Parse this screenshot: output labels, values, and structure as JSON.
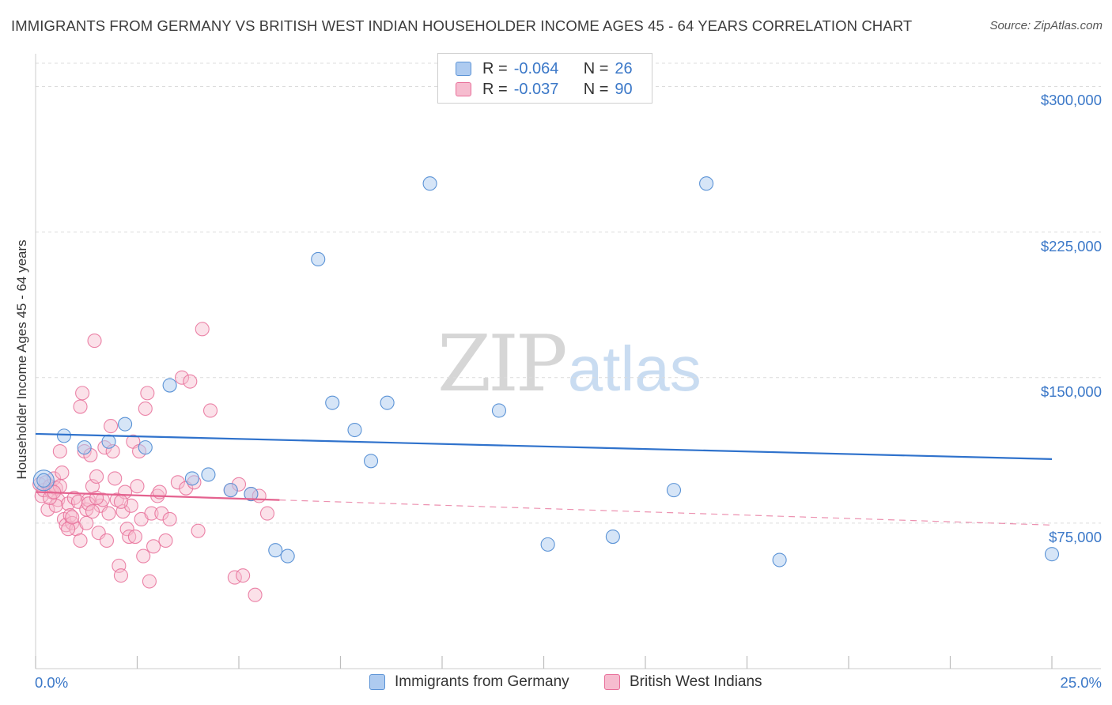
{
  "title": "IMMIGRANTS FROM GERMANY VS BRITISH WEST INDIAN HOUSEHOLDER INCOME AGES 45 - 64 YEARS CORRELATION CHART",
  "source": "Source: ZipAtlas.com",
  "watermark": {
    "zip": "ZIP",
    "atlas": "atlas"
  },
  "legend": {
    "r_label": "R =",
    "n_label": "N =",
    "germany": {
      "r": "-0.064",
      "n": "26"
    },
    "bwi": {
      "r": "-0.037",
      "n": "90"
    }
  },
  "colors": {
    "germany_fill": "#aecbf0",
    "germany_stroke": "#5b93d6",
    "germany_line": "#2f72cc",
    "bwi_fill": "#f6bccf",
    "bwi_stroke": "#e86e99",
    "bwi_line": "#e4628f",
    "tick_text": "#3b78c8",
    "grid": "#dcdcdc"
  },
  "chart_data": {
    "type": "scatter",
    "title": "IMMIGRANTS FROM GERMANY VS BRITISH WEST INDIAN HOUSEHOLDER INCOME AGES 45 - 64 YEARS CORRELATION CHART",
    "xlabel": "",
    "ylabel": "Householder Income Ages 45 - 64 years",
    "xlim": [
      0,
      25
    ],
    "ylim": [
      0,
      312000
    ],
    "x_tick_labels": [
      "0.0%",
      "25.0%"
    ],
    "y_ticks": [
      75000,
      150000,
      225000,
      300000
    ],
    "y_tick_labels": [
      "$75,000",
      "$150,000",
      "$225,000",
      "$300,000"
    ],
    "legend_position": "top-center",
    "series": [
      {
        "name": "Immigrants from Germany",
        "r": -0.064,
        "n": 26,
        "trend": {
          "x": [
            0,
            25
          ],
          "y": [
            121000,
            108000
          ],
          "solid_until": 25
        },
        "points": [
          {
            "x": 0.2,
            "y": 97000
          },
          {
            "x": 0.7,
            "y": 120000
          },
          {
            "x": 1.2,
            "y": 114000
          },
          {
            "x": 1.8,
            "y": 117000
          },
          {
            "x": 2.2,
            "y": 126000
          },
          {
            "x": 2.7,
            "y": 114000
          },
          {
            "x": 3.3,
            "y": 146000
          },
          {
            "x": 3.85,
            "y": 98000
          },
          {
            "x": 4.25,
            "y": 100000
          },
          {
            "x": 4.8,
            "y": 92000
          },
          {
            "x": 5.3,
            "y": 90000
          },
          {
            "x": 5.9,
            "y": 61000
          },
          {
            "x": 6.2,
            "y": 58000
          },
          {
            "x": 6.95,
            "y": 211000
          },
          {
            "x": 7.3,
            "y": 137000
          },
          {
            "x": 7.85,
            "y": 123000
          },
          {
            "x": 8.25,
            "y": 107000
          },
          {
            "x": 8.65,
            "y": 137000
          },
          {
            "x": 9.7,
            "y": 250000
          },
          {
            "x": 11.4,
            "y": 133000
          },
          {
            "x": 12.6,
            "y": 64000
          },
          {
            "x": 14.2,
            "y": 68000
          },
          {
            "x": 15.7,
            "y": 92000
          },
          {
            "x": 16.5,
            "y": 250000
          },
          {
            "x": 18.3,
            "y": 56000
          },
          {
            "x": 25.0,
            "y": 59000
          }
        ]
      },
      {
        "name": "British West Indians",
        "r": -0.037,
        "n": 90,
        "trend": {
          "x": [
            0,
            25
          ],
          "y": [
            91000,
            74000
          ],
          "solid_until": 6
        },
        "points": [
          {
            "x": 0.1,
            "y": 95000
          },
          {
            "x": 0.15,
            "y": 89000
          },
          {
            "x": 0.2,
            "y": 92000
          },
          {
            "x": 0.25,
            "y": 96000
          },
          {
            "x": 0.3,
            "y": 82000
          },
          {
            "x": 0.35,
            "y": 94000
          },
          {
            "x": 0.4,
            "y": 91000
          },
          {
            "x": 0.45,
            "y": 98000
          },
          {
            "x": 0.5,
            "y": 93000
          },
          {
            "x": 0.55,
            "y": 87000
          },
          {
            "x": 0.6,
            "y": 112000
          },
          {
            "x": 0.65,
            "y": 101000
          },
          {
            "x": 0.7,
            "y": 77000
          },
          {
            "x": 0.75,
            "y": 74000
          },
          {
            "x": 0.8,
            "y": 85000
          },
          {
            "x": 0.85,
            "y": 79000
          },
          {
            "x": 0.9,
            "y": 75000
          },
          {
            "x": 0.95,
            "y": 88000
          },
          {
            "x": 1.0,
            "y": 72000
          },
          {
            "x": 1.05,
            "y": 86000
          },
          {
            "x": 0.6,
            "y": 94000
          },
          {
            "x": 0.5,
            "y": 84000
          },
          {
            "x": 0.8,
            "y": 72000
          },
          {
            "x": 0.9,
            "y": 78000
          },
          {
            "x": 1.1,
            "y": 66000
          },
          {
            "x": 1.15,
            "y": 142000
          },
          {
            "x": 1.1,
            "y": 135000
          },
          {
            "x": 1.2,
            "y": 112000
          },
          {
            "x": 1.25,
            "y": 82000
          },
          {
            "x": 1.3,
            "y": 87000
          },
          {
            "x": 1.35,
            "y": 110000
          },
          {
            "x": 1.4,
            "y": 94000
          },
          {
            "x": 1.45,
            "y": 169000
          },
          {
            "x": 1.5,
            "y": 99000
          },
          {
            "x": 1.55,
            "y": 70000
          },
          {
            "x": 1.6,
            "y": 84000
          },
          {
            "x": 1.65,
            "y": 87000
          },
          {
            "x": 1.7,
            "y": 114000
          },
          {
            "x": 1.75,
            "y": 66000
          },
          {
            "x": 1.8,
            "y": 80000
          },
          {
            "x": 1.3,
            "y": 85000
          },
          {
            "x": 1.4,
            "y": 81000
          },
          {
            "x": 1.5,
            "y": 88000
          },
          {
            "x": 1.25,
            "y": 75000
          },
          {
            "x": 1.85,
            "y": 125000
          },
          {
            "x": 1.9,
            "y": 112000
          },
          {
            "x": 1.95,
            "y": 98000
          },
          {
            "x": 2.0,
            "y": 87000
          },
          {
            "x": 2.05,
            "y": 53000
          },
          {
            "x": 2.1,
            "y": 48000
          },
          {
            "x": 2.15,
            "y": 81000
          },
          {
            "x": 2.2,
            "y": 91000
          },
          {
            "x": 2.25,
            "y": 72000
          },
          {
            "x": 2.3,
            "y": 68000
          },
          {
            "x": 2.4,
            "y": 117000
          },
          {
            "x": 2.5,
            "y": 94000
          },
          {
            "x": 2.55,
            "y": 112000
          },
          {
            "x": 2.6,
            "y": 77000
          },
          {
            "x": 2.65,
            "y": 58000
          },
          {
            "x": 2.7,
            "y": 134000
          },
          {
            "x": 2.75,
            "y": 142000
          },
          {
            "x": 2.8,
            "y": 45000
          },
          {
            "x": 2.85,
            "y": 80000
          },
          {
            "x": 2.9,
            "y": 63000
          },
          {
            "x": 3.0,
            "y": 89000
          },
          {
            "x": 3.05,
            "y": 91000
          },
          {
            "x": 3.1,
            "y": 80000
          },
          {
            "x": 3.2,
            "y": 66000
          },
          {
            "x": 3.3,
            "y": 77000
          },
          {
            "x": 2.45,
            "y": 68000
          },
          {
            "x": 2.35,
            "y": 84000
          },
          {
            "x": 2.1,
            "y": 86000
          },
          {
            "x": 3.5,
            "y": 96000
          },
          {
            "x": 3.6,
            "y": 150000
          },
          {
            "x": 3.7,
            "y": 93000
          },
          {
            "x": 3.8,
            "y": 148000
          },
          {
            "x": 3.9,
            "y": 96000
          },
          {
            "x": 4.0,
            "y": 71000
          },
          {
            "x": 4.1,
            "y": 175000
          },
          {
            "x": 4.3,
            "y": 133000
          },
          {
            "x": 4.8,
            "y": 92000
          },
          {
            "x": 4.9,
            "y": 47000
          },
          {
            "x": 5.0,
            "y": 95000
          },
          {
            "x": 5.1,
            "y": 48000
          },
          {
            "x": 5.3,
            "y": 90000
          },
          {
            "x": 5.4,
            "y": 38000
          },
          {
            "x": 5.5,
            "y": 89000
          },
          {
            "x": 5.7,
            "y": 80000
          },
          {
            "x": 0.35,
            "y": 88000
          },
          {
            "x": 0.45,
            "y": 91000
          }
        ]
      }
    ]
  },
  "bottom_legend": {
    "germany_label": "Immigrants from Germany",
    "bwi_label": "British West Indians"
  }
}
